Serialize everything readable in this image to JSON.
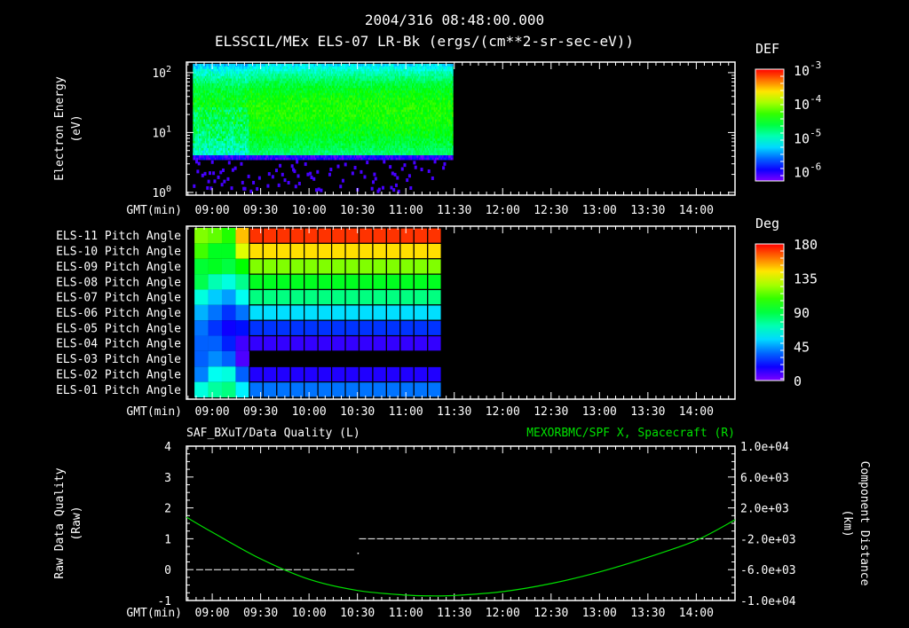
{
  "header": {
    "title_line1": "2004/316 08:48:00.000",
    "title_line2": "ELSSCIL/MEx ELS-07 LR-Bk  (ergs/(cm**2-sr-sec-eV))"
  },
  "time_axis": {
    "label": "GMT(min)",
    "start": "08:44",
    "end": "14:24",
    "tick_labels": [
      "09:00",
      "09:30",
      "10:00",
      "10:30",
      "11:00",
      "11:30",
      "12:00",
      "12:30",
      "13:00",
      "13:30",
      "14:00"
    ]
  },
  "colors": {
    "background": "#000000",
    "axes": "#ffffff",
    "component_line": "#00e000",
    "quality_line": "#ffffff"
  },
  "chart_data": [
    {
      "type": "heatmap",
      "name": "spectrogram",
      "ylabel_line1": "Electron Energy",
      "ylabel_line2": "(eV)",
      "yscale": "log",
      "ylim": [
        0.9,
        150
      ],
      "y_tick_labels": [
        {
          "base": "10",
          "exp": "0",
          "value": 1
        },
        {
          "base": "10",
          "exp": "1",
          "value": 10
        },
        {
          "base": "10",
          "exp": "2",
          "value": 100
        }
      ],
      "data_time_range": [
        "08:50",
        "11:29"
      ],
      "energy_range_ev": [
        3.5,
        140
      ],
      "peak_energy_ev": 25,
      "peak_log_def": -4.4,
      "colorbar": {
        "title": "DEF",
        "scale": "log",
        "range_log": [
          -6.3,
          -3
        ],
        "tick_labels": [
          {
            "base": "10",
            "exp": "-3",
            "value": -3
          },
          {
            "base": "10",
            "exp": "-4",
            "value": -4
          },
          {
            "base": "10",
            "exp": "-5",
            "value": -5
          },
          {
            "base": "10",
            "exp": "-6",
            "value": -6
          }
        ]
      }
    },
    {
      "type": "heatmap",
      "name": "pitch-angle",
      "row_labels": [
        "ELS-11 Pitch Angle",
        "ELS-10 Pitch Angle",
        "ELS-09 Pitch Angle",
        "ELS-08 Pitch Angle",
        "ELS-07 Pitch Angle",
        "ELS-06 Pitch Angle",
        "ELS-05 Pitch Angle",
        "ELS-04 Pitch Angle",
        "ELS-03 Pitch Angle",
        "ELS-02 Pitch Angle",
        "ELS-01 Pitch Angle"
      ],
      "column_start": "08:49",
      "column_minutes": 8.5,
      "values_deg": [
        [
          120,
          115,
          105,
          150,
          172,
          172,
          172,
          172,
          172,
          172,
          172,
          172,
          172,
          172,
          172,
          172,
          172,
          172
        ],
        [
          110,
          95,
          95,
          135,
          145,
          145,
          145,
          145,
          145,
          145,
          145,
          145,
          145,
          145,
          145,
          145,
          145,
          145
        ],
        [
          92,
          95,
          90,
          100,
          120,
          120,
          120,
          120,
          120,
          120,
          120,
          120,
          120,
          120,
          120,
          120,
          120,
          120
        ],
        [
          88,
          72,
          65,
          78,
          95,
          95,
          95,
          95,
          95,
          95,
          95,
          95,
          95,
          95,
          95,
          95,
          95,
          95
        ],
        [
          65,
          52,
          45,
          62,
          80,
          80,
          80,
          80,
          80,
          80,
          80,
          80,
          80,
          80,
          80,
          80,
          80,
          80
        ],
        [
          48,
          38,
          28,
          38,
          55,
          55,
          55,
          55,
          55,
          55,
          55,
          55,
          55,
          55,
          55,
          55,
          55,
          55
        ],
        [
          38,
          28,
          18,
          22,
          28,
          28,
          28,
          28,
          28,
          28,
          28,
          28,
          28,
          28,
          28,
          28,
          28,
          28
        ],
        [
          35,
          35,
          25,
          10,
          12,
          12,
          12,
          12,
          12,
          12,
          12,
          12,
          12,
          12,
          12,
          12,
          12,
          12
        ],
        [
          35,
          42,
          35,
          8,
          null,
          null,
          null,
          null,
          null,
          null,
          null,
          null,
          null,
          null,
          null,
          null,
          null,
          null
        ],
        [
          40,
          62,
          65,
          35,
          15,
          15,
          15,
          15,
          15,
          15,
          15,
          15,
          15,
          15,
          15,
          15,
          15,
          15
        ],
        [
          65,
          75,
          80,
          58,
          38,
          38,
          38,
          38,
          38,
          38,
          38,
          38,
          38,
          38,
          38,
          38,
          38,
          38
        ]
      ],
      "colorbar": {
        "title": "Deg",
        "range": [
          0,
          180
        ],
        "tick_labels": [
          "180",
          "135",
          "90",
          "45",
          "0"
        ]
      }
    },
    {
      "type": "line",
      "name": "quality-and-position",
      "left_title": "SAF_BXuT/Data Quality (L)",
      "right_title": "MEXORBMC/SPF X, Spacecraft (R)",
      "ylabel_left_line1": "Raw Data Quality",
      "ylabel_left_line2": "(Raw)",
      "ylabel_right_line1": "Component Distance",
      "ylabel_right_line2": "(km)",
      "ylim_left": [
        -1,
        4
      ],
      "ylim_right": [
        -10000,
        10000
      ],
      "left_tick_labels": [
        "4",
        "3",
        "2",
        "1",
        "0",
        "-1"
      ],
      "right_tick_labels": [
        "1.0e+04",
        "6.0e+03",
        "2.0e+03",
        "-2.0e+03",
        "-6.0e+03",
        "-1.0e+04"
      ],
      "series": [
        {
          "name": "Data Quality",
          "axis": "left",
          "style": "dashed",
          "segments": [
            {
              "from": "08:50",
              "to": "10:28",
              "value": 0
            },
            {
              "from": "10:31",
              "to": "14:20",
              "value": 1
            }
          ],
          "points": [
            {
              "t": "10:30",
              "value": 0.55
            }
          ]
        },
        {
          "name": "SPF X",
          "axis": "right",
          "style": "solid",
          "t": [
            "08:44",
            "09:00",
            "09:30",
            "10:00",
            "10:30",
            "11:00",
            "11:15",
            "11:30",
            "12:00",
            "12:30",
            "13:00",
            "13:30",
            "14:00",
            "14:24"
          ],
          "values": [
            800,
            -1150,
            -4600,
            -7250,
            -8700,
            -9300,
            -9400,
            -9350,
            -8850,
            -7800,
            -6300,
            -4400,
            -2200,
            450
          ]
        }
      ]
    }
  ]
}
